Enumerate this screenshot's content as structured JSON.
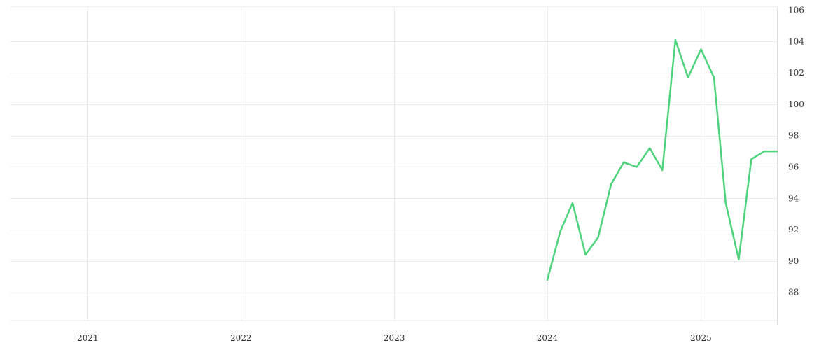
{
  "chart_data": {
    "type": "line",
    "title": "",
    "xlabel": "",
    "ylabel": "",
    "grid": true,
    "legend": "none",
    "x_axis": {
      "type": "time",
      "range": [
        "2020-07-01",
        "2025-07-01"
      ],
      "ticks": [
        {
          "date": "2021-01-01",
          "label": "2021"
        },
        {
          "date": "2022-01-01",
          "label": "2022"
        },
        {
          "date": "2023-01-01",
          "label": "2023"
        },
        {
          "date": "2024-01-01",
          "label": "2024"
        },
        {
          "date": "2025-01-01",
          "label": "2025"
        }
      ]
    },
    "y_axis": {
      "position": "right",
      "range": [
        86.2,
        106.2
      ],
      "ticks": [
        88,
        90,
        92,
        94,
        96,
        98,
        100,
        102,
        104,
        106
      ]
    },
    "series": [
      {
        "color": "#4cd37b",
        "points": [
          {
            "x": "2024-01-01",
            "y": 88.8
          },
          {
            "x": "2024-02-01",
            "y": 91.9
          },
          {
            "x": "2024-03-01",
            "y": 93.7
          },
          {
            "x": "2024-04-01",
            "y": 90.4
          },
          {
            "x": "2024-05-01",
            "y": 91.5
          },
          {
            "x": "2024-06-01",
            "y": 94.9
          },
          {
            "x": "2024-07-01",
            "y": 96.3
          },
          {
            "x": "2024-08-01",
            "y": 96.0
          },
          {
            "x": "2024-09-01",
            "y": 97.2
          },
          {
            "x": "2024-10-01",
            "y": 95.8
          },
          {
            "x": "2024-11-01",
            "y": 104.1
          },
          {
            "x": "2024-12-01",
            "y": 101.7
          },
          {
            "x": "2025-01-01",
            "y": 103.5
          },
          {
            "x": "2025-02-01",
            "y": 101.7
          },
          {
            "x": "2025-03-01",
            "y": 93.7
          },
          {
            "x": "2025-04-01",
            "y": 90.1
          },
          {
            "x": "2025-05-01",
            "y": 96.5
          },
          {
            "x": "2025-06-01",
            "y": 97.0
          },
          {
            "x": "2025-07-01",
            "y": 97.0
          }
        ]
      }
    ]
  }
}
